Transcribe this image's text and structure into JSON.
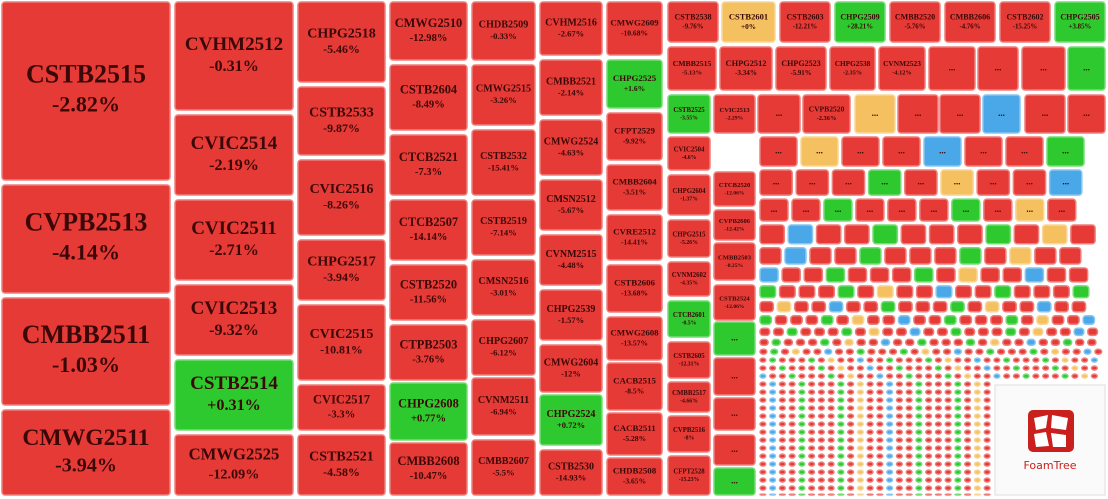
{
  "chart_data": {
    "type": "treemap",
    "more_label": "...",
    "logo_label": "FoamTree",
    "tiles": [
      {
        "name": "CSTB2515",
        "value": -2.82,
        "value_label": "-2.82%",
        "color": "#e53a35"
      },
      {
        "name": "CVPB2513",
        "value": -4.14,
        "value_label": "-4.14%",
        "color": "#e53a35"
      },
      {
        "name": "CMBB2511",
        "value": -1.03,
        "value_label": "-1.03%",
        "color": "#e53a35"
      },
      {
        "name": "CMWG2511",
        "value": -3.94,
        "value_label": "-3.94%",
        "color": "#e53a35"
      },
      {
        "name": "CVHM2512",
        "value": -0.31,
        "value_label": "-0.31%",
        "color": "#e53a35"
      },
      {
        "name": "CVIC2514",
        "value": -2.19,
        "value_label": "-2.19%",
        "color": "#e53a35"
      },
      {
        "name": "CVIC2511",
        "value": -2.71,
        "value_label": "-2.71%",
        "color": "#e53a35"
      },
      {
        "name": "CVIC2513",
        "value": -9.32,
        "value_label": "-9.32%",
        "color": "#e53a35"
      },
      {
        "name": "CSTB2514",
        "value": 0.31,
        "value_label": "+0.31%",
        "color": "#2ec92e"
      },
      {
        "name": "CMWG2525",
        "value": -12.09,
        "value_label": "-12.09%",
        "color": "#e53a35"
      },
      {
        "name": "CHPG2518",
        "value": -5.46,
        "value_label": "-5.46%",
        "color": "#e53a35"
      },
      {
        "name": "CSTB2533",
        "value": -9.87,
        "value_label": "-9.87%",
        "color": "#e53a35"
      },
      {
        "name": "CVIC2516",
        "value": -8.26,
        "value_label": "-8.26%",
        "color": "#e53a35"
      },
      {
        "name": "CHPG2517",
        "value": -3.94,
        "value_label": "-3.94%",
        "color": "#e53a35"
      },
      {
        "name": "CVIC2515",
        "value": -10.81,
        "value_label": "-10.81%",
        "color": "#e53a35"
      },
      {
        "name": "CVIC2517",
        "value": -3.3,
        "value_label": "-3.3%",
        "color": "#e53a35"
      },
      {
        "name": "CSTB2521",
        "value": -4.58,
        "value_label": "-4.58%",
        "color": "#e53a35"
      },
      {
        "name": "CMWG2510",
        "value": -12.98,
        "value_label": "-12.98%",
        "color": "#e53a35"
      },
      {
        "name": "CSTB2604",
        "value": -8.49,
        "value_label": "-8.49%",
        "color": "#e53a35"
      },
      {
        "name": "CTCB2521",
        "value": -7.3,
        "value_label": "-7.3%",
        "color": "#e53a35"
      },
      {
        "name": "CTCB2507",
        "value": -14.14,
        "value_label": "-14.14%",
        "color": "#e53a35"
      },
      {
        "name": "CSTB2520",
        "value": -11.56,
        "value_label": "-11.56%",
        "color": "#e53a35"
      },
      {
        "name": "CTPB2503",
        "value": -3.76,
        "value_label": "-3.76%",
        "color": "#e53a35"
      },
      {
        "name": "CHPG2608",
        "value": 0.77,
        "value_label": "+0.77%",
        "color": "#2ec92e"
      },
      {
        "name": "CMBB2608",
        "value": -10.47,
        "value_label": "-10.47%",
        "color": "#e53a35"
      },
      {
        "name": "CHDB2509",
        "value": -0.33,
        "value_label": "-0.33%",
        "color": "#e53a35"
      },
      {
        "name": "CMWG2515",
        "value": -3.26,
        "value_label": "-3.26%",
        "color": "#e53a35"
      },
      {
        "name": "CSTB2532",
        "value": -15.41,
        "value_label": "-15.41%",
        "color": "#e53a35"
      },
      {
        "name": "CSTB2519",
        "value": -7.14,
        "value_label": "-7.14%",
        "color": "#e53a35"
      },
      {
        "name": "CMSN2516",
        "value": -3.01,
        "value_label": "-3.01%",
        "color": "#e53a35"
      },
      {
        "name": "CHPG2607",
        "value": -6.12,
        "value_label": "-6.12%",
        "color": "#e53a35"
      },
      {
        "name": "CVNM2511",
        "value": -6.94,
        "value_label": "-6.94%",
        "color": "#e53a35"
      },
      {
        "name": "CMBB2607",
        "value": -5.5,
        "value_label": "-5.5%",
        "color": "#e53a35"
      },
      {
        "name": "CVHM2516",
        "value": -2.67,
        "value_label": "-2.67%",
        "color": "#e53a35"
      },
      {
        "name": "CMBB2521",
        "value": -2.14,
        "value_label": "-2.14%",
        "color": "#e53a35"
      },
      {
        "name": "CMWG2524",
        "value": -4.63,
        "value_label": "-4.63%",
        "color": "#e53a35"
      },
      {
        "name": "CMSN2512",
        "value": -5.67,
        "value_label": "-5.67%",
        "color": "#e53a35"
      },
      {
        "name": "CVNM2515",
        "value": -4.48,
        "value_label": "-4.48%",
        "color": "#e53a35"
      },
      {
        "name": "CHPG2539",
        "value": -1.57,
        "value_label": "-1.57%",
        "color": "#e53a35"
      },
      {
        "name": "CMWG2604",
        "value": -12,
        "value_label": "-12%",
        "color": "#e53a35"
      },
      {
        "name": "CHPG2524",
        "value": 0.72,
        "value_label": "+0.72%",
        "color": "#2ec92e"
      },
      {
        "name": "CSTB2530",
        "value": -14.93,
        "value_label": "-14.93%",
        "color": "#e53a35"
      },
      {
        "name": "CMWG2609",
        "value": -10.68,
        "value_label": "-10.68%",
        "color": "#e53a35"
      },
      {
        "name": "CHPG2525",
        "value": 1.6,
        "value_label": "+1.6%",
        "color": "#2ec92e"
      },
      {
        "name": "CFPT2529",
        "value": -9.92,
        "value_label": "-9.92%",
        "color": "#e53a35"
      },
      {
        "name": "CMBB2604",
        "value": -3.51,
        "value_label": "-3.51%",
        "color": "#e53a35"
      },
      {
        "name": "CVRE2512",
        "value": -14.41,
        "value_label": "-14.41%",
        "color": "#e53a35"
      },
      {
        "name": "CSTB2606",
        "value": -13.68,
        "value_label": "-13.68%",
        "color": "#e53a35"
      },
      {
        "name": "CMWG2608",
        "value": -13.57,
        "value_label": "-13.57%",
        "color": "#e53a35"
      },
      {
        "name": "CACB2515",
        "value": -8.5,
        "value_label": "-8.5%",
        "color": "#e53a35"
      },
      {
        "name": "CACB2511",
        "value": -5.28,
        "value_label": "-5.28%",
        "color": "#e53a35"
      },
      {
        "name": "CHDB2508",
        "value": -3.65,
        "value_label": "-3.65%",
        "color": "#e53a35"
      },
      {
        "name": "CSTB2538",
        "value": -9.76,
        "value_label": "-9.76%",
        "color": "#e53a35"
      },
      {
        "name": "CSTB2601",
        "value": 0,
        "value_label": "+0%",
        "color": "#f5c160"
      },
      {
        "name": "CSTB2603",
        "value": -12.21,
        "value_label": "-12.21%",
        "color": "#e53a35"
      },
      {
        "name": "CHPG2509",
        "value": 28.21,
        "value_label": "+28.21%",
        "color": "#2ec92e"
      },
      {
        "name": "CMBB2520",
        "value": -5.76,
        "value_label": "-5.76%",
        "color": "#e53a35"
      },
      {
        "name": "CMBB2606",
        "value": -4.76,
        "value_label": "-4.76%",
        "color": "#e53a35"
      },
      {
        "name": "CSTB2602",
        "value": -15.25,
        "value_label": "-15.25%",
        "color": "#e53a35"
      },
      {
        "name": "CHPG2505",
        "value": 3.85,
        "value_label": "+3.85%",
        "color": "#2ec92e"
      },
      {
        "name": "CMBB2515",
        "value": -5.13,
        "value_label": "-5.13%",
        "color": "#e53a35"
      },
      {
        "name": "CHPG2512",
        "value": -3.34,
        "value_label": "-3.34%",
        "color": "#e53a35"
      },
      {
        "name": "CHPG2523",
        "value": -5.91,
        "value_label": "-5.91%",
        "color": "#e53a35"
      },
      {
        "name": "CHPG2538",
        "value": -2.35,
        "value_label": "-2.35%",
        "color": "#e53a35"
      },
      {
        "name": "CVNM2523",
        "value": -4.12,
        "value_label": "-4.12%",
        "color": "#e53a35"
      },
      {
        "name": "CSTB2525",
        "value": -3.55,
        "value_label": "-3.55%",
        "color": "#2ec92e"
      },
      {
        "name": "CVIC2513",
        "value": -2.29,
        "value_label": "-2.29%",
        "color": "#e53a35"
      },
      {
        "name": "CVPB2520",
        "value": -2.36,
        "value_label": "-2.36%",
        "color": "#e53a35"
      },
      {
        "name": "CVIC2504",
        "value": -4.6,
        "value_label": "-4.6%",
        "color": "#e53a35"
      },
      {
        "name": "CHPG2604",
        "value": -1.37,
        "value_label": "-1.37%",
        "color": "#e53a35"
      },
      {
        "name": "CHPG2515",
        "value": -5.26,
        "value_label": "-5.26%",
        "color": "#e53a35"
      },
      {
        "name": "CVNM2602",
        "value": -4.35,
        "value_label": "-4.35%",
        "color": "#e53a35"
      },
      {
        "name": "CTCB2601",
        "value": -0.5,
        "value_label": "-0.5%",
        "color": "#2ec92e"
      },
      {
        "name": "CSTB2605",
        "value": -12.31,
        "value_label": "-12.31%",
        "color": "#e53a35"
      },
      {
        "name": "CMBB2517",
        "value": -4.66,
        "value_label": "-4.66%",
        "color": "#e53a35"
      },
      {
        "name": "CVPB2516",
        "value": -8,
        "value_label": "-8%",
        "color": "#e53a35"
      },
      {
        "name": "CFPT2528",
        "value": -15.23,
        "value_label": "-15.23%",
        "color": "#e53a35"
      },
      {
        "name": "CTCB2520",
        "value": -12.06,
        "value_label": "-12.06%",
        "color": "#e53a35"
      },
      {
        "name": "CVPB2606",
        "value": -12.42,
        "value_label": "-12.42%",
        "color": "#e53a35"
      },
      {
        "name": "CMBB2503",
        "value": -8.25,
        "value_label": "-8.25%",
        "color": "#e53a35"
      },
      {
        "name": "CSTB2524",
        "value": -12.06,
        "value_label": "-12.06%",
        "color": "#e53a35"
      }
    ]
  }
}
